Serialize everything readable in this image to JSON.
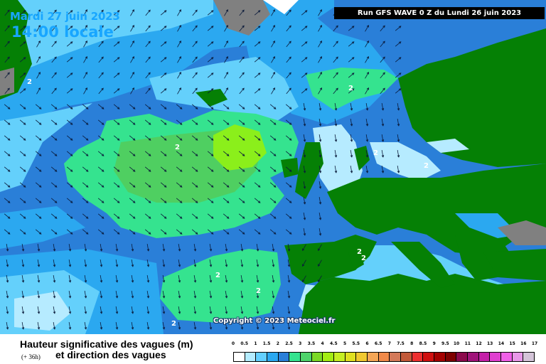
{
  "header": {
    "date": "Mardi 27 juin 2023",
    "local_time": "14:00 locale",
    "run_info": "Run GFS WAVE 0 Z du Lundi 26 juin 2023"
  },
  "map": {
    "copyright": "Copyright © 2023 Meteociel.fr",
    "contour_labels": [
      "2",
      "2",
      "2",
      "2",
      "2",
      "2",
      "2",
      "2",
      "2",
      "2"
    ],
    "colors": {
      "sea_deep": "#2a7fd8",
      "sea_mid": "#2ba8f0",
      "sea_light": "#64d0fb",
      "sea_pale": "#b6ebff",
      "wave_green": "#35e38f",
      "wave_green_dark": "#4fcf61",
      "wave_lime": "#8bef1b",
      "land": "#058005",
      "ice": "#808080",
      "no_data": "#ffffff"
    }
  },
  "legend": {
    "title_line1": "Hauteur significative des vagues (m)",
    "title_line2": "et direction des vagues",
    "lead_time": "(+ 36h)",
    "scale_labels": [
      "0",
      "0.5",
      "1",
      "1.5",
      "2",
      "2.5",
      "3",
      "3.5",
      "4",
      "4.5",
      "5",
      "5.5",
      "6",
      "6.5",
      "7",
      "7.5",
      "8",
      "8.5",
      "9",
      "9.5",
      "10",
      "11",
      "12",
      "13",
      "14",
      "15",
      "16",
      "17"
    ],
    "scale_colors": [
      "#ffffff",
      "#b4ecff",
      "#64d0ff",
      "#2ba8f0",
      "#2a7fd8",
      "#35e38f",
      "#4ed36b",
      "#7bd926",
      "#a3ed13",
      "#c6ef22",
      "#e0e020",
      "#f0c830",
      "#f4a656",
      "#f08a4a",
      "#d47a5a",
      "#c25a3a",
      "#ee3030",
      "#d01010",
      "#a40000",
      "#7e0000",
      "#8c0a4c",
      "#a0147a",
      "#c420a8",
      "#e040d0",
      "#f060e8",
      "#e898e8",
      "#d4c4d8"
    ]
  }
}
